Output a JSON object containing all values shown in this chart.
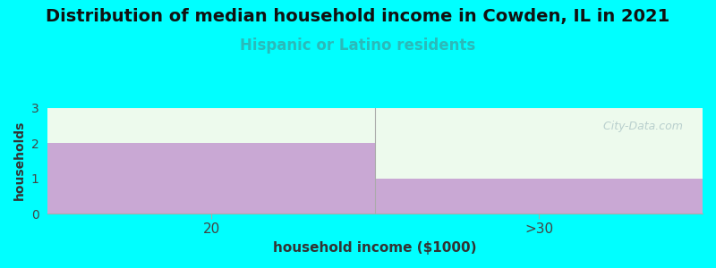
{
  "title": "Distribution of median household income in Cowden, IL in 2021",
  "subtitle": "Hispanic or Latino residents",
  "xlabel": "household income ($1000)",
  "ylabel": "households",
  "categories": [
    "20",
    ">30"
  ],
  "values": [
    2,
    1
  ],
  "ylim": [
    0,
    3
  ],
  "bar_color": "#c9a8d4",
  "bg_color": "#00ffff",
  "plot_bg_color": "#edfaed",
  "title_fontsize": 14,
  "subtitle_fontsize": 12,
  "subtitle_color": "#2ababa",
  "xlabel_fontsize": 11,
  "ylabel_fontsize": 10,
  "watermark_text": "  City-Data.com",
  "yticks": [
    0,
    1,
    2,
    3
  ],
  "title_color": "#111111"
}
